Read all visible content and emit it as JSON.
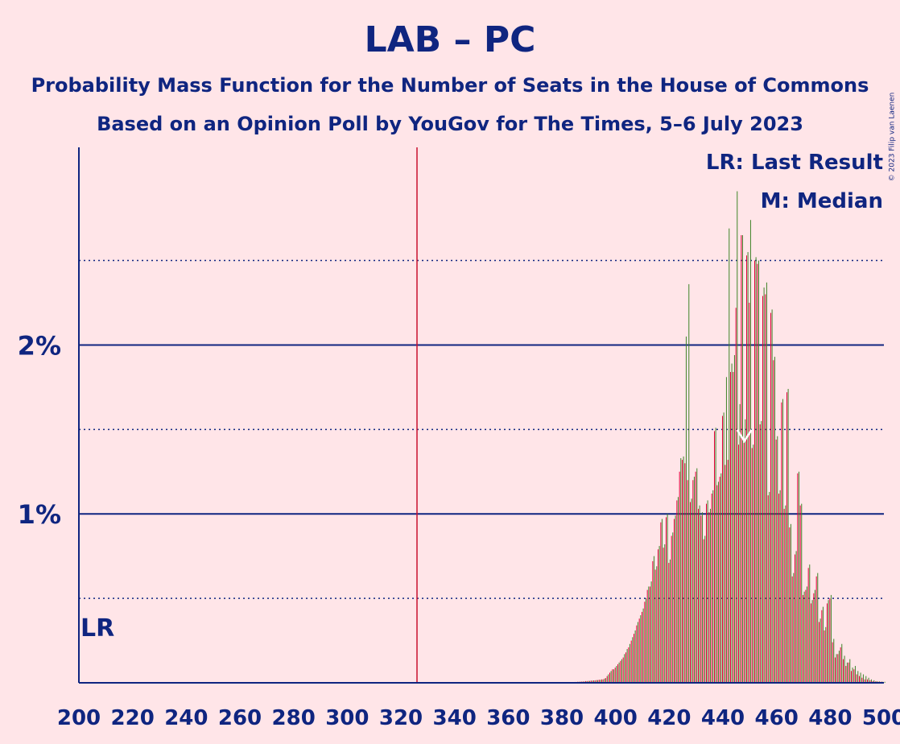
{
  "header": {
    "title": "LAB – PC",
    "subtitle_line1": "Probability Mass Function for the Number of Seats in the House of Commons",
    "subtitle_line2": "Based on an Opinion Poll by YouGov for The Times, 5–6 July 2023",
    "copyright": "© 2023 Filip van Laenen"
  },
  "colors": {
    "background": "#FFE5E8",
    "text": "#0F2580",
    "lab_bar": "#E4003B",
    "pc_bar": "#3F8428",
    "majority_line": "#C8102E",
    "grid": "#0F2580"
  },
  "chart_data": {
    "type": "bar",
    "title": "LAB – PC",
    "xlabel": "",
    "ylabel": "",
    "xlim": [
      200,
      500
    ],
    "ylim": [
      0,
      3.17
    ],
    "x_ticks": [
      "200",
      "220",
      "240",
      "260",
      "280",
      "300",
      "320",
      "340",
      "360",
      "380",
      "400",
      "420",
      "440",
      "460",
      "480",
      "500"
    ],
    "y_ticks": [
      {
        "value": 1,
        "label": "1%"
      },
      {
        "value": 2,
        "label": "2%"
      }
    ],
    "y_dotted": [
      0.5,
      1.5,
      2.5
    ],
    "majority_line_x": 326,
    "last_result_label": "LR",
    "last_result_x": 200,
    "legend": [
      "LR: Last Result",
      "M: Median"
    ],
    "median_marker": {
      "label": "M",
      "x": 448,
      "y": 1.45
    },
    "grid": true,
    "seats": [
      385,
      386,
      387,
      388,
      389,
      390,
      391,
      392,
      393,
      394,
      395,
      396,
      397,
      398,
      399,
      400,
      401,
      402,
      403,
      404,
      405,
      406,
      407,
      408,
      409,
      410,
      411,
      412,
      413,
      414,
      415,
      416,
      417,
      418,
      419,
      420,
      421,
      422,
      423,
      424,
      425,
      426,
      427,
      428,
      429,
      430,
      431,
      432,
      433,
      434,
      435,
      436,
      437,
      438,
      439,
      440,
      441,
      442,
      443,
      444,
      445,
      446,
      447,
      448,
      449,
      450,
      451,
      452,
      453,
      454,
      455,
      456,
      457,
      458,
      459,
      460,
      461,
      462,
      463,
      464,
      465,
      466,
      467,
      468,
      469,
      470,
      471,
      472,
      473,
      474,
      475,
      476,
      477,
      478,
      479,
      480,
      481,
      482,
      483,
      484,
      485,
      486,
      487,
      488,
      489,
      490,
      491,
      492,
      493,
      494,
      495,
      496,
      497,
      498,
      499,
      500
    ],
    "series": [
      {
        "values": [
          0.005,
          0.006,
          0.007,
          0.008,
          0.01,
          0.011,
          0.013,
          0.014,
          0.016,
          0.018,
          0.02,
          0.025,
          0.04,
          0.06,
          0.08,
          0.09,
          0.11,
          0.13,
          0.15,
          0.18,
          0.21,
          0.25,
          0.29,
          0.34,
          0.38,
          0.42,
          0.48,
          0.55,
          0.57,
          0.72,
          0.67,
          0.79,
          0.95,
          0.8,
          0.98,
          0.71,
          0.87,
          0.97,
          1.08,
          1.25,
          1.32,
          1.3,
          1.2,
          1.07,
          1.2,
          1.25,
          1.03,
          0.99,
          0.85,
          1.06,
          1.01,
          1.12,
          1.49,
          1.17,
          1.22,
          1.58,
          1.29,
          1.32,
          1.84,
          1.84,
          2.22,
          1.41,
          2.65,
          1.42,
          2.53,
          2.25,
          1.39,
          2.5,
          2.48,
          1.53,
          2.29,
          2.3,
          1.11,
          2.19,
          1.91,
          1.44,
          1.12,
          1.66,
          1.03,
          1.72,
          0.92,
          0.63,
          0.76,
          1.24,
          1.05,
          0.52,
          0.55,
          0.68,
          0.47,
          0.53,
          0.63,
          0.36,
          0.43,
          0.31,
          0.47,
          0.5,
          0.24,
          0.15,
          0.17,
          0.21,
          0.14,
          0.1,
          0.12,
          0.07,
          0.08,
          0.05,
          0.04,
          0.03,
          0.02,
          0.02,
          0.015,
          0.01,
          0.008,
          0.007,
          0.006,
          0.005
        ]
      },
      {
        "values": [
          0.005,
          0.006,
          0.007,
          0.008,
          0.01,
          0.011,
          0.013,
          0.014,
          0.016,
          0.018,
          0.02,
          0.028,
          0.05,
          0.07,
          0.08,
          0.1,
          0.12,
          0.14,
          0.17,
          0.2,
          0.23,
          0.27,
          0.31,
          0.36,
          0.4,
          0.44,
          0.5,
          0.57,
          0.6,
          0.75,
          0.69,
          0.81,
          0.97,
          0.82,
          1.0,
          0.73,
          0.89,
          0.99,
          1.1,
          1.33,
          1.34,
          2.05,
          2.36,
          1.09,
          1.22,
          1.27,
          1.05,
          1.01,
          0.87,
          1.08,
          1.03,
          1.14,
          1.51,
          1.19,
          1.24,
          1.6,
          1.81,
          2.69,
          1.89,
          1.94,
          2.91,
          1.65,
          2.65,
          1.56,
          2.55,
          2.74,
          1.41,
          2.52,
          2.5,
          1.55,
          2.34,
          2.37,
          1.13,
          2.21,
          1.93,
          1.46,
          1.14,
          1.68,
          1.05,
          1.74,
          0.94,
          0.65,
          0.78,
          1.25,
          1.06,
          0.54,
          0.57,
          0.7,
          0.49,
          0.55,
          0.65,
          0.38,
          0.45,
          0.33,
          0.49,
          0.52,
          0.26,
          0.17,
          0.19,
          0.23,
          0.16,
          0.12,
          0.14,
          0.09,
          0.1,
          0.07,
          0.06,
          0.05,
          0.04,
          0.03,
          0.02,
          0.015,
          0.01,
          0.008,
          0.007,
          0.006
        ]
      }
    ]
  }
}
